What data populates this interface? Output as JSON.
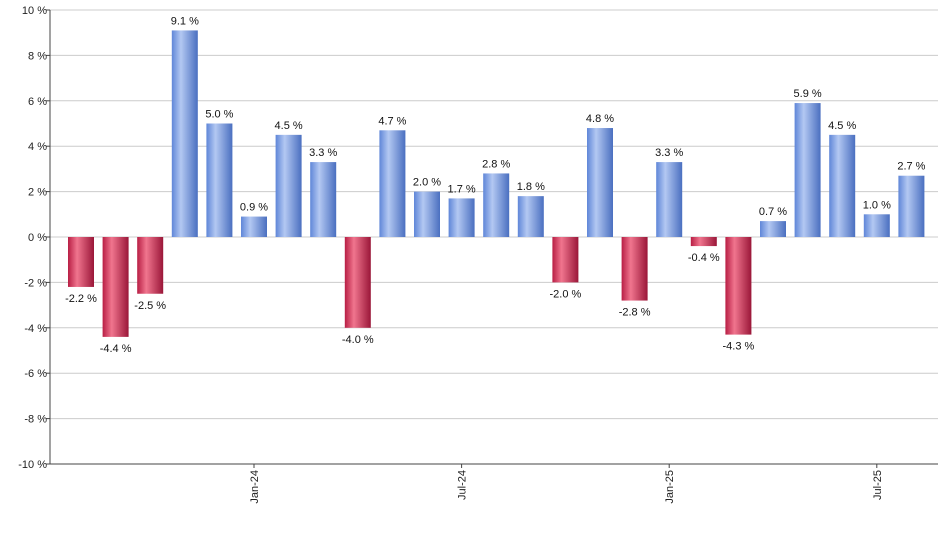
{
  "chart_data": {
    "type": "bar",
    "title": "",
    "xlabel": "",
    "ylabel": "",
    "ylim": [
      -10,
      10
    ],
    "y_ticks": [
      10,
      8,
      6,
      4,
      2,
      0,
      -2,
      -4,
      -6,
      -8,
      -10
    ],
    "y_tick_suffix": " %",
    "grid": true,
    "legend": "none",
    "values": [
      -2.2,
      -4.4,
      -2.5,
      9.1,
      5.0,
      0.9,
      4.5,
      3.3,
      -4.0,
      4.7,
      2.0,
      1.7,
      2.8,
      1.8,
      -2.0,
      4.8,
      -2.8,
      3.3,
      -0.4,
      -4.3,
      0.7,
      5.9,
      4.5,
      1.0,
      2.7
    ],
    "data_labels": [
      "-2.2 %",
      "-4.4 %",
      "-2.5 %",
      "9.1 %",
      "5.0 %",
      "0.9 %",
      "4.5 %",
      "3.3 %",
      "-4.0 %",
      "4.7 %",
      "2.0 %",
      "1.7 %",
      "2.8 %",
      "1.8 %",
      "-2.0 %",
      "4.8 %",
      "-2.8 %",
      "3.3 %",
      "-0.4 %",
      "-4.3 %",
      "0.7 %",
      "5.9 %",
      "4.5 %",
      "1.0 %",
      "2.7 %"
    ],
    "x_tick_labels": [
      {
        "label": "Jan-24",
        "index": 5
      },
      {
        "label": "Jul-24",
        "index": 11
      },
      {
        "label": "Jan-25",
        "index": 17
      },
      {
        "label": "Jul-25",
        "index": 23
      }
    ],
    "colors": {
      "positive": "#5f86d8",
      "positive_light": "#b3c8f2",
      "negative": "#b81e44",
      "negative_light": "#f0758e",
      "grid": "#cccccc",
      "axis": "#444444"
    }
  }
}
